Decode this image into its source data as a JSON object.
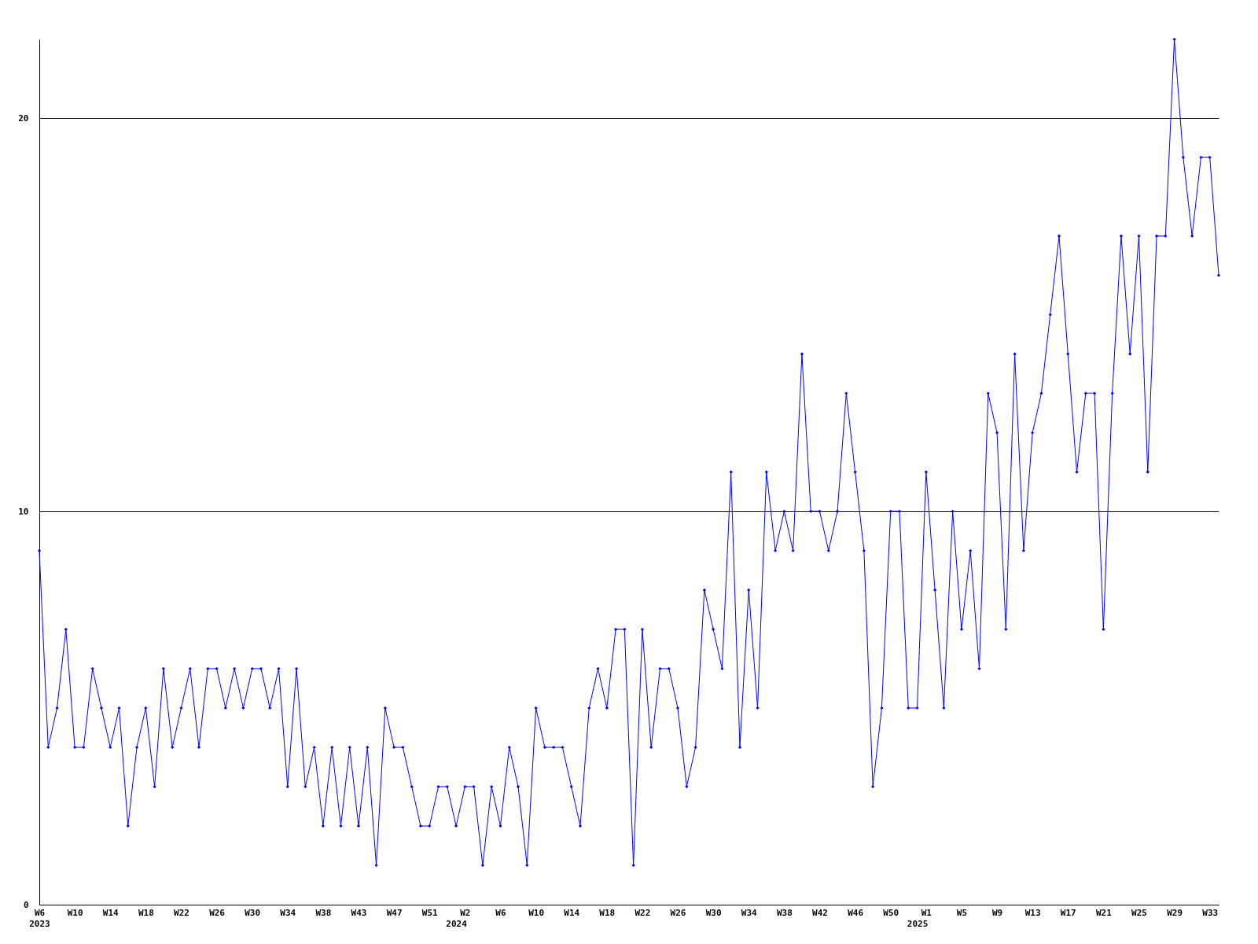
{
  "chart_data": {
    "type": "line",
    "categories": [
      "W6\n2023",
      null,
      null,
      null,
      "W10",
      null,
      null,
      null,
      "W14",
      null,
      null,
      null,
      "W18",
      null,
      null,
      null,
      "W22",
      null,
      null,
      null,
      "W26",
      null,
      null,
      null,
      "W30",
      null,
      null,
      null,
      "W34",
      null,
      null,
      null,
      "W38",
      null,
      null,
      null,
      "W43",
      null,
      null,
      null,
      "W47",
      null,
      null,
      null,
      "W51",
      null,
      null,
      "\n2024",
      "W2",
      null,
      null,
      null,
      "W6",
      null,
      null,
      null,
      "W10",
      null,
      null,
      null,
      "W14",
      null,
      null,
      null,
      "W18",
      null,
      null,
      null,
      "W22",
      null,
      null,
      null,
      "W26",
      null,
      null,
      null,
      "W30",
      null,
      null,
      null,
      "W34",
      null,
      null,
      null,
      "W38",
      null,
      null,
      null,
      "W42",
      null,
      null,
      null,
      "W46",
      null,
      null,
      null,
      "W50",
      null,
      null,
      "\n2025",
      "W1",
      null,
      null,
      null,
      "W5",
      null,
      null,
      null,
      "W9",
      null,
      null,
      null,
      "W13",
      null,
      null,
      null,
      "W17",
      null,
      null,
      null,
      "W21",
      null,
      null,
      null,
      "W25",
      null,
      null,
      null,
      "W29",
      null,
      null,
      null,
      "W33",
      null
    ],
    "values": [
      9,
      4,
      5,
      7,
      4,
      4,
      6,
      5,
      4,
      5,
      2,
      4,
      5,
      3,
      6,
      4,
      5,
      6,
      4,
      6,
      6,
      5,
      6,
      5,
      6,
      6,
      5,
      6,
      3,
      6,
      3,
      4,
      2,
      4,
      2,
      4,
      2,
      4,
      1,
      5,
      4,
      4,
      3,
      2,
      2,
      3,
      3,
      2,
      3,
      3,
      1,
      3,
      2,
      4,
      3,
      1,
      5,
      4,
      4,
      4,
      3,
      2,
      5,
      6,
      5,
      7,
      7,
      1,
      7,
      4,
      6,
      6,
      5,
      3,
      4,
      8,
      7,
      6,
      11,
      4,
      8,
      5,
      11,
      9,
      10,
      9,
      14,
      10,
      10,
      9,
      10,
      13,
      11,
      9,
      3,
      5,
      10,
      10,
      5,
      5,
      11,
      8,
      5,
      10,
      7,
      9,
      6,
      13,
      12,
      7,
      14,
      9,
      12,
      13,
      15,
      17,
      14,
      11,
      13,
      13,
      7,
      13,
      17,
      14,
      17,
      11,
      17,
      17,
      22,
      19,
      17,
      19,
      19,
      16
    ],
    "color": "#0000ff",
    "ylim": [
      0,
      22
    ],
    "yticks": [
      0,
      10,
      20
    ],
    "grid": "y",
    "marker": "diamond",
    "line_style": "solid"
  }
}
